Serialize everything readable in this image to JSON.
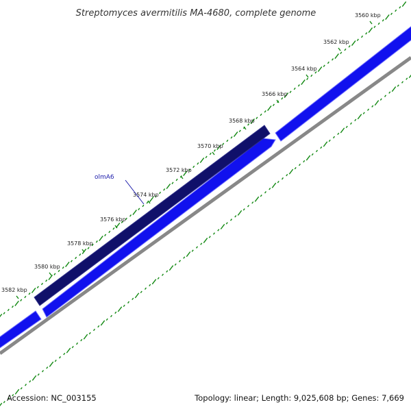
{
  "title": "Streptomyces avermitilis MA-4680, complete genome",
  "accession_label": "Accession: NC_003155",
  "summary_label": "Topology: linear; Length: 9,025,608 bp; Genes: 7,669",
  "colors": {
    "forward_gene": "#1111ee",
    "reverse_gene": "#10106a",
    "backbone": "#888888",
    "ticks": "#118811",
    "gene_label": "#1a1aaa"
  },
  "scale": {
    "unit": "kbp",
    "visible_start_kbp": 3559,
    "visible_end_kbp": 3583,
    "tick_labels": [
      "3560 kbp",
      "3562 kbp",
      "3564 kbp",
      "3566 kbp",
      "3568 kbp",
      "3570 kbp",
      "3572 kbp",
      "3574 kbp",
      "3576 kbp",
      "3578 kbp",
      "3580 kbp",
      "3582 kbp"
    ]
  },
  "genes": [
    {
      "label": "",
      "strand": "forward",
      "segment": "upper"
    },
    {
      "label": "",
      "strand": "forward",
      "segment": "lower"
    },
    {
      "label": "olmA6",
      "strand": "reverse",
      "segment": "main"
    }
  ]
}
